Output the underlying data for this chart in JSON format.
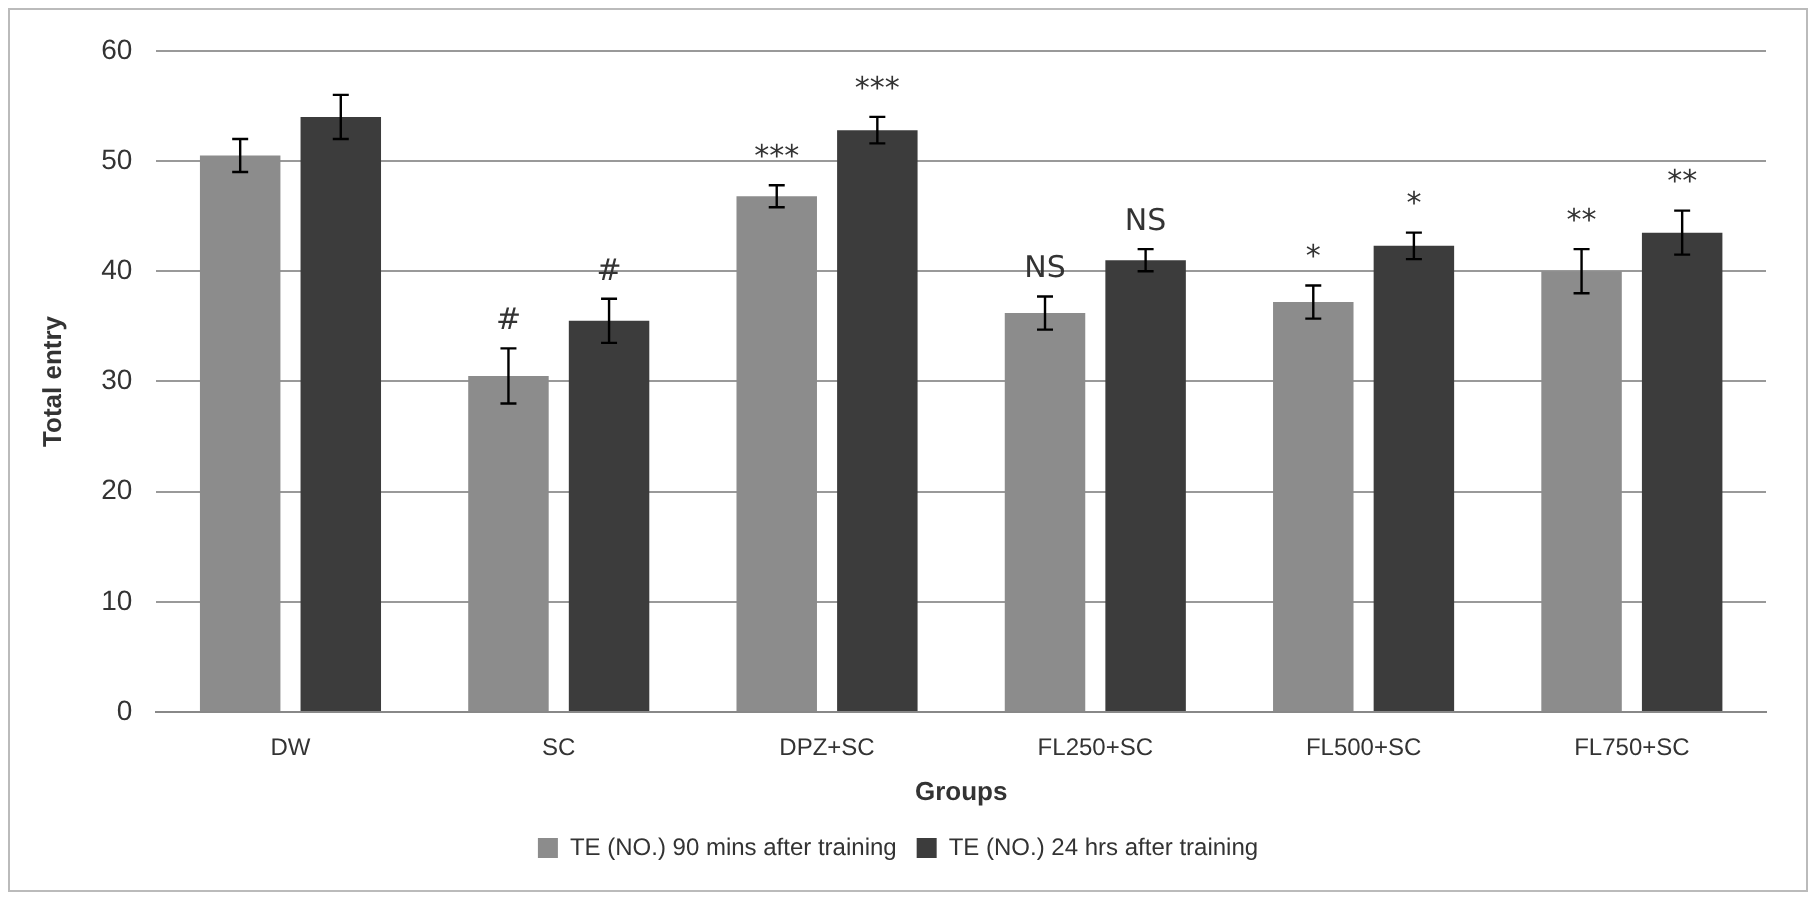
{
  "chart_data": {
    "type": "bar",
    "xlabel": "Groups",
    "ylabel": "Total entry",
    "categories": [
      "DW",
      "SC",
      "DPZ+SC",
      "FL250+SC",
      "FL500+SC",
      "FL750+SC"
    ],
    "series": [
      {
        "name": "TE (NO.) 90 mins after training",
        "color": "#8c8c8c",
        "values": [
          50.5,
          30.5,
          46.8,
          36.2,
          37.2,
          40
        ],
        "errors": [
          1.5,
          2.5,
          1,
          1.5,
          1.5,
          2
        ],
        "value_labels": [
          null,
          "#",
          "***",
          "NS",
          "*",
          "**"
        ]
      },
      {
        "name": "TE (NO.) 24 hrs after training",
        "color": "#3c3c3c",
        "values": [
          54,
          35.5,
          52.8,
          41,
          42.3,
          43.5
        ],
        "errors": [
          2,
          2,
          1.2,
          1,
          1.2,
          2
        ],
        "value_labels": [
          null,
          "#",
          "***",
          "NS",
          "*",
          "**"
        ]
      }
    ],
    "ylim": [
      0,
      60
    ],
    "yticks": [
      0,
      10,
      20,
      30,
      40,
      50,
      60
    ],
    "grid": "y",
    "legend": "bottom"
  }
}
